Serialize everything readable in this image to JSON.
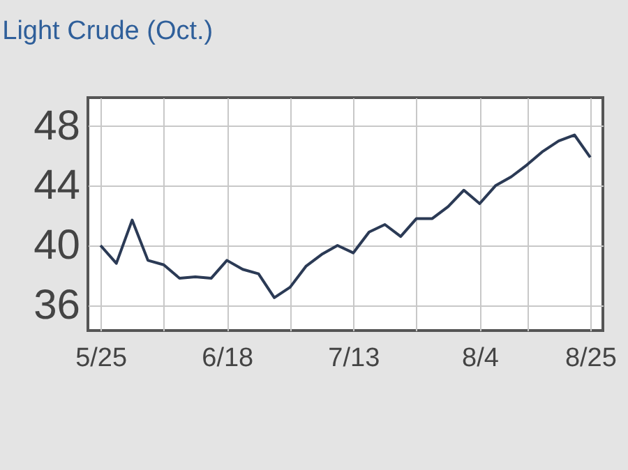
{
  "chart_data": {
    "type": "line",
    "title": "Light Crude (Oct.)",
    "categories": [
      "5/25",
      null,
      null,
      null,
      null,
      null,
      null,
      null,
      "6/18",
      null,
      null,
      null,
      null,
      null,
      null,
      null,
      "7/13",
      null,
      null,
      null,
      null,
      null,
      null,
      null,
      "8/4",
      null,
      null,
      null,
      null,
      null,
      null,
      "8/25"
    ],
    "series": [
      {
        "color": "#2b3a55",
        "values": [
          40.0,
          38.8,
          41.7,
          39.0,
          38.7,
          37.8,
          37.9,
          37.8,
          39.0,
          38.4,
          38.1,
          36.5,
          37.2,
          38.6,
          39.4,
          40.0,
          39.5,
          40.9,
          41.4,
          40.6,
          41.8,
          41.8,
          42.6,
          43.7,
          42.8,
          44.0,
          44.6,
          45.4,
          46.3,
          47.0,
          47.4,
          45.9
        ]
      }
    ],
    "ylim": [
      34.3,
      49.9
    ],
    "yticks": [
      36,
      40,
      44,
      48
    ],
    "grid": true,
    "marker": "none",
    "line_style": "solid"
  }
}
